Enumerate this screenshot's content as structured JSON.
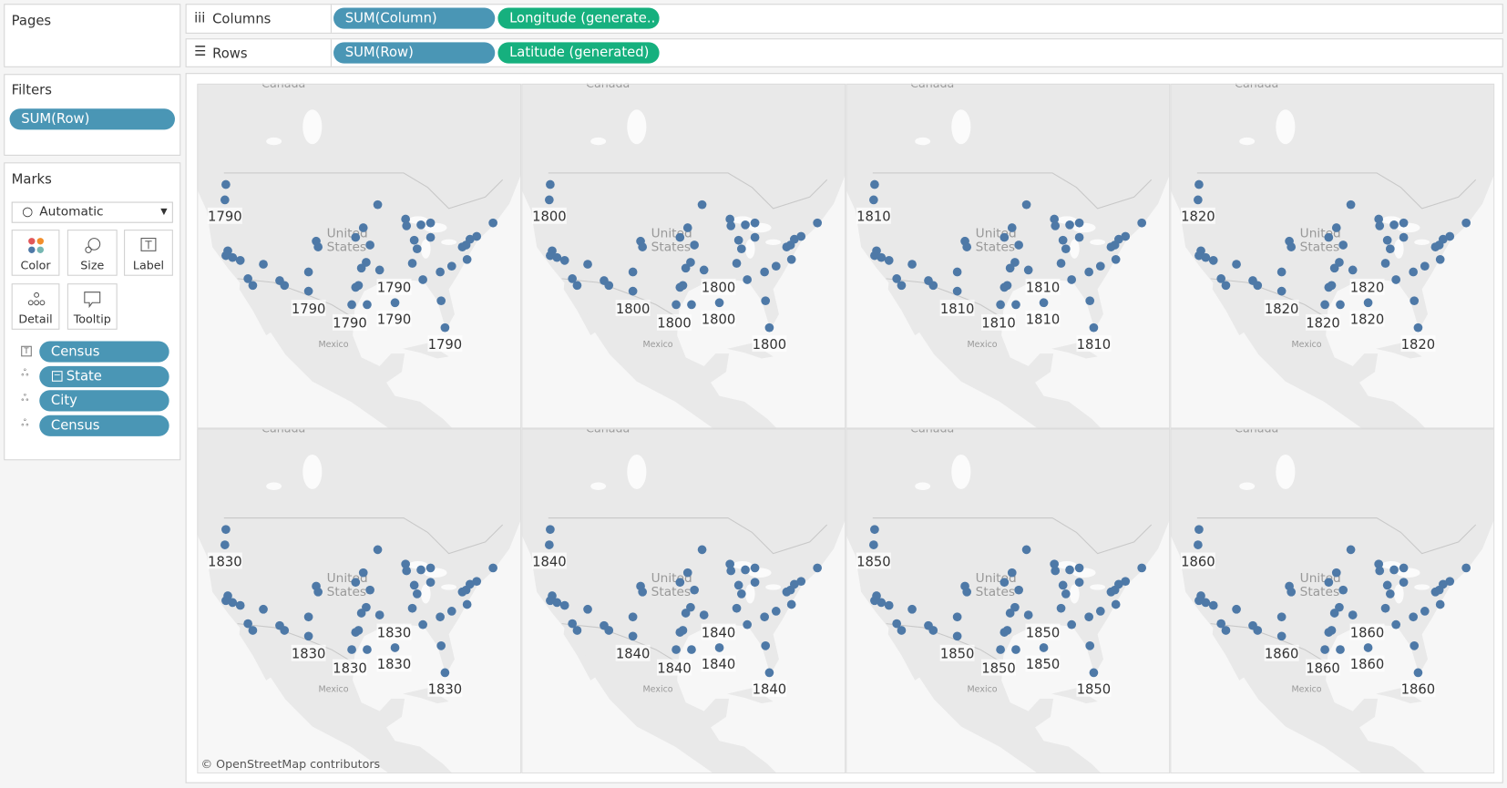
{
  "shelves": {
    "pages": "Pages",
    "columns": {
      "label": "Columns",
      "pills": [
        "SUM(Column)",
        "Longitude (generate.."
      ]
    },
    "rows": {
      "label": "Rows",
      "pills": [
        "SUM(Row)",
        "Latitude (generated)"
      ]
    }
  },
  "filters": {
    "title": "Filters",
    "pills": [
      "SUM(Row)"
    ]
  },
  "marks": {
    "title": "Marks",
    "mark_type": "Automatic",
    "buttons": [
      "Color",
      "Size",
      "Label",
      "Detail",
      "Tooltip"
    ],
    "fields": [
      "Census",
      "State",
      "City",
      "Census"
    ]
  },
  "view": {
    "map_labels": {
      "north": "Canada",
      "center": [
        "United",
        "States"
      ],
      "south": "Mexico"
    },
    "panels": [
      {
        "labels": [
          1790,
          1790,
          1790,
          1790,
          1790,
          1790
        ]
      },
      {
        "labels": [
          1800,
          1800,
          1800,
          1800,
          1800,
          1800
        ]
      },
      {
        "labels": [
          1810,
          1810,
          1810,
          1810,
          1810,
          1810
        ]
      },
      {
        "labels": [
          1820,
          1820,
          1820,
          1820,
          1820,
          1820
        ]
      },
      {
        "labels": [
          1830,
          1830,
          1830,
          1830,
          1830,
          1830
        ]
      },
      {
        "labels": [
          1840,
          1840,
          1840,
          1840,
          1840,
          1840
        ]
      },
      {
        "labels": [
          1850,
          1850,
          1850,
          1850,
          1850,
          1850
        ]
      },
      {
        "labels": [
          1860,
          1860,
          1860,
          1860,
          1860,
          1860
        ]
      }
    ],
    "attribution": "© OpenStreetMap contributors"
  }
}
